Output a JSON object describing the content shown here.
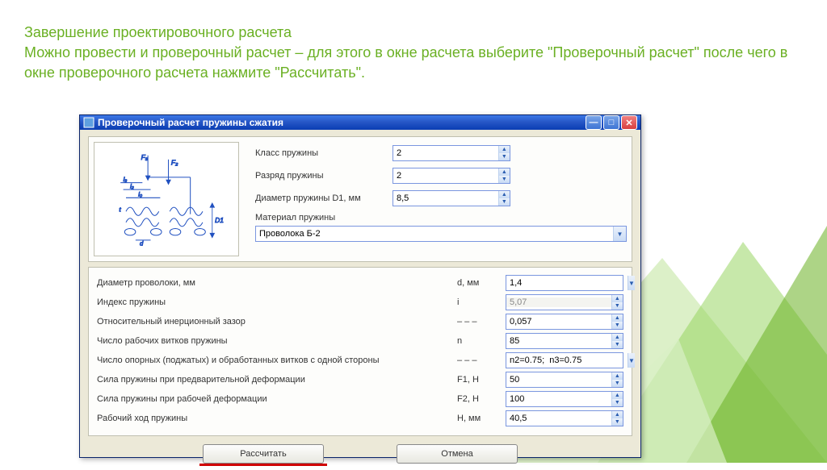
{
  "colors": {
    "heading": "#6ab023",
    "titlebar_start": "#3b78e7",
    "titlebar_end": "#0a3db3",
    "panel_bg": "#ece9d8",
    "border": "#7a96df",
    "underline": "#d00000"
  },
  "heading": "Завершение проектировочного расчета\nМожно провести и проверочный расчет – для этого в окне расчета выберите \"Проверочный расчет\" после чего в окне проверочного расчета нажмите \"Рассчитать\".",
  "window": {
    "title": "Проверочный расчет пружины сжатия",
    "top": {
      "class_label": "Класс пружины",
      "class_value": "2",
      "rank_label": "Разряд пружины",
      "rank_value": "2",
      "diameter_label": "Диаметр пружины  D1, мм",
      "diameter_value": "8,5",
      "material_label": "Материал пружины",
      "material_value": "Проволока Б-2"
    },
    "params": [
      {
        "label": "Диаметр проволоки, мм",
        "symbol": "d,  мм",
        "value": "1,4",
        "type": "combo"
      },
      {
        "label": "Индекс пружины",
        "symbol": "i",
        "value": "5,07",
        "type": "disabled"
      },
      {
        "label": "Относительный инерционный зазор",
        "symbol": "– – –",
        "value": "0,057",
        "type": "spinner"
      },
      {
        "label": "Число рабочих витков пружины",
        "symbol": "n",
        "value": "85",
        "type": "spinner"
      },
      {
        "label": "Число опорных (поджатых) и обработанных витков с одной стороны",
        "symbol": "– – –",
        "value": "n2=0.75;  n3=0.75",
        "type": "combo"
      },
      {
        "label": "Сила пружины при предварительной деформации",
        "symbol": "F1, Н",
        "value": "50",
        "type": "spinner"
      },
      {
        "label": "Сила пружины при рабочей деформации",
        "symbol": "F2, Н",
        "value": "100",
        "type": "spinner"
      },
      {
        "label": "Рабочий ход пружины",
        "symbol": "H,  мм",
        "value": "40,5",
        "type": "spinner"
      }
    ],
    "buttons": {
      "calculate": "Рассчитать",
      "cancel": "Отмена"
    }
  }
}
